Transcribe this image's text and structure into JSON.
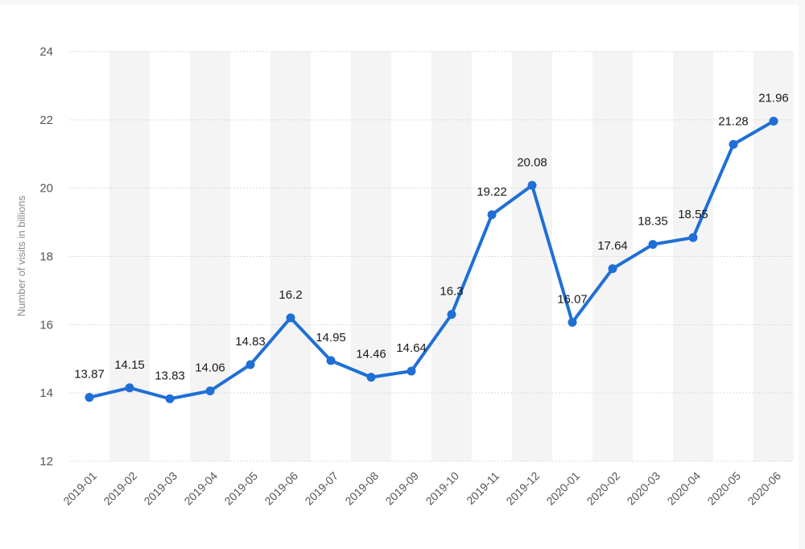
{
  "chart_data": {
    "type": "line",
    "title": "",
    "xlabel": "",
    "ylabel": "Number of visits in billions",
    "x": [
      "2019-01",
      "2019-02",
      "2019-03",
      "2019-04",
      "2019-05",
      "2019-06",
      "2019-07",
      "2019-08",
      "2019-09",
      "2019-10",
      "2019-11",
      "2019-12",
      "2020-01",
      "2020-02",
      "2020-03",
      "2020-04",
      "2020-05",
      "2020-06"
    ],
    "series": [
      {
        "values": [
          13.87,
          14.15,
          13.83,
          14.06,
          14.83,
          16.2,
          14.95,
          14.46,
          14.64,
          16.3,
          19.22,
          20.08,
          16.07,
          17.64,
          18.35,
          18.55,
          21.28,
          21.96
        ],
        "labels": [
          "13.87",
          "14.15",
          "13.83",
          "14.06",
          "14.83",
          "16.2",
          "14.95",
          "14.46",
          "14.64",
          "16.3",
          "19.22",
          "20.08",
          "16.07",
          "17.64",
          "18.35",
          "18.55",
          "21.28",
          "21.96"
        ],
        "color": "#1f6fd6"
      }
    ],
    "ylim": [
      12,
      24
    ],
    "yticks": [
      12,
      14,
      16,
      18,
      20,
      22,
      24
    ],
    "grid": true,
    "band_color": "#f4f4f4",
    "legend": "none"
  }
}
